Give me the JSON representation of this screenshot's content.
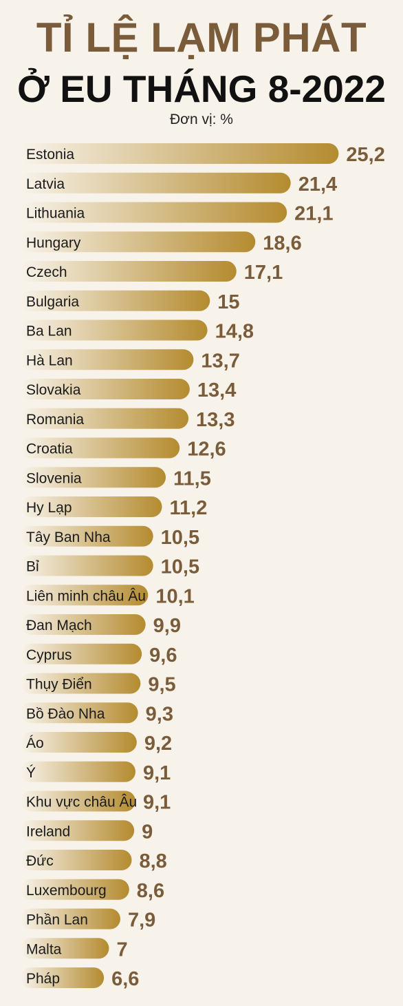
{
  "title_line1": "TỈ LỆ LẠM PHÁT",
  "title_line2": "Ở EU THÁNG 8-2022",
  "unit": "Đơn vị: %",
  "colors": {
    "bar_start": "#f8f3ea",
    "bar_end": "#b48b2f",
    "value_text": "#7a5b3a",
    "label_text": "#1a1a1a",
    "title_brown": "#7a5b3a"
  },
  "chart_data": {
    "type": "bar",
    "orientation": "horizontal",
    "title": "TỈ LỆ LẠM PHÁT Ở EU THÁNG 8-2022",
    "unit": "Đơn vị: %",
    "categories": [
      "Estonia",
      "Latvia",
      "Lithuania",
      "Hungary",
      "Czech",
      "Bulgaria",
      "Ba Lan",
      "Hà Lan",
      "Slovakia",
      "Romania",
      "Croatia",
      "Slovenia",
      "Hy Lạp",
      "Tây Ban Nha",
      "Bỉ",
      "Liên minh châu Âu",
      "Đan Mạch",
      "Cyprus",
      "Thụy Điển",
      "Bồ Đào Nha",
      "Áo",
      "Ý",
      "Khu vực châu Âu",
      "Ireland",
      "Đức",
      "Luxembourg",
      "Phần Lan",
      "Malta",
      "Pháp"
    ],
    "values": [
      25.2,
      21.4,
      21.1,
      18.6,
      17.1,
      15,
      14.8,
      13.7,
      13.4,
      13.3,
      12.6,
      11.5,
      11.2,
      10.5,
      10.5,
      10.1,
      9.9,
      9.6,
      9.5,
      9.3,
      9.2,
      9.1,
      9.1,
      9,
      8.8,
      8.6,
      7.9,
      7,
      6.6
    ],
    "value_labels": [
      "25,2",
      "21,4",
      "21,1",
      "18,6",
      "17,1",
      "15",
      "14,8",
      "13,7",
      "13,4",
      "13,3",
      "12,6",
      "11,5",
      "11,2",
      "10,5",
      "10,5",
      "10,1",
      "9,9",
      "9,6",
      "9,5",
      "9,3",
      "9,2",
      "9,1",
      "9,1",
      "9",
      "8,8",
      "8,6",
      "7,9",
      "7",
      "6,6"
    ]
  }
}
